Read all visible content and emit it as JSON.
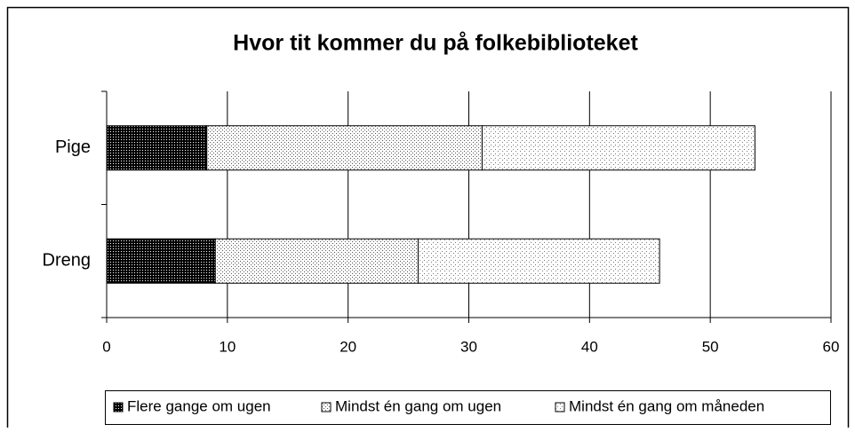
{
  "chart_data": {
    "type": "stacked-bar-horizontal",
    "title": "Hvor tit kommer du på folkebiblioteket",
    "categories": [
      "Pige",
      "Dreng"
    ],
    "series": [
      {
        "name": "Flere gange om ugen",
        "color": "#000000",
        "values": [
          8.3,
          9.0
        ]
      },
      {
        "name": "Mindst én gang om ugen",
        "color": "#555555",
        "values": [
          22.8,
          16.8
        ]
      },
      {
        "name": "Mindst én gang om måneden",
        "color": "#777777",
        "values": [
          22.6,
          20.0
        ]
      }
    ],
    "xlim": [
      0,
      60
    ],
    "xticks": [
      0,
      10,
      20,
      30,
      40,
      50,
      60
    ],
    "grid": true,
    "legend": "bottom"
  }
}
